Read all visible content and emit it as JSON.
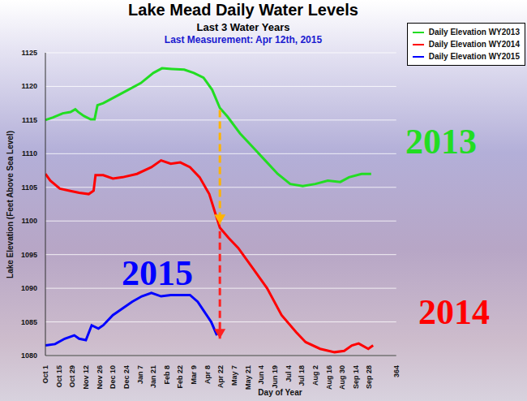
{
  "chart_data": {
    "type": "line",
    "title": "Lake Mead Daily Water Levels",
    "subtitle": "Last 3 Water Years",
    "note": "Last Measurement: Apr 12th, 2015",
    "x_label": "Day of Year",
    "y_label": "Lake Elevation (Feet Above Sea Level)",
    "xlim": [
      0,
      364
    ],
    "xticks": [
      {
        "value": 0,
        "label": "Oct 1"
      },
      {
        "value": 14,
        "label": "Oct 15"
      },
      {
        "value": 28,
        "label": "Oct 29"
      },
      {
        "value": 42,
        "label": "Nov 12"
      },
      {
        "value": 56,
        "label": "Nov 26"
      },
      {
        "value": 70,
        "label": "Dec 10"
      },
      {
        "value": 84,
        "label": "Dec 24"
      },
      {
        "value": 98,
        "label": "Jan 7"
      },
      {
        "value": 112,
        "label": "Jan 21"
      },
      {
        "value": 126,
        "label": "Feb 8"
      },
      {
        "value": 140,
        "label": "Feb 22"
      },
      {
        "value": 154,
        "label": "Mar 9"
      },
      {
        "value": 168,
        "label": "Apr 8"
      },
      {
        "value": 182,
        "label": "Apr 22"
      },
      {
        "value": 196,
        "label": "May 7"
      },
      {
        "value": 210,
        "label": "May 21"
      },
      {
        "value": 224,
        "label": "Jun 4"
      },
      {
        "value": 238,
        "label": "Jun 19"
      },
      {
        "value": 252,
        "label": "Jul 4"
      },
      {
        "value": 266,
        "label": "Jul 18"
      },
      {
        "value": 280,
        "label": "Aug 2"
      },
      {
        "value": 294,
        "label": "Aug 16"
      },
      {
        "value": 308,
        "label": "Aug 30"
      },
      {
        "value": 322,
        "label": "Sep 14"
      },
      {
        "value": 336,
        "label": "Sep 28"
      },
      364
    ],
    "ylim": [
      1080,
      1125
    ],
    "yticks": [
      1080,
      1085,
      1090,
      1095,
      1100,
      1105,
      1110,
      1115,
      1120,
      1125
    ],
    "grid": true,
    "legend": "upper right",
    "series": [
      {
        "name": "Daily Elevation WY2013",
        "color": "#22dd22",
        "x": [
          0,
          8,
          18,
          26,
          31,
          34,
          40,
          47,
          51,
          54,
          60,
          73,
          86,
          99,
          112,
          121,
          131,
          144,
          154,
          164,
          173,
          181,
          189,
          202,
          215,
          228,
          241,
          254,
          267,
          280,
          293,
          306,
          315,
          328,
          338
        ],
        "values": [
          1115,
          1115.4,
          1116,
          1116.2,
          1116.6,
          1116.2,
          1115.6,
          1115.1,
          1115.1,
          1117.2,
          1117.5,
          1118.5,
          1119.5,
          1120.5,
          1122,
          1122.7,
          1122.6,
          1122.5,
          1122,
          1121.3,
          1119.5,
          1116.8,
          1115.5,
          1113,
          1111,
          1109,
          1107,
          1105.5,
          1105.2,
          1105.5,
          1106,
          1105.8,
          1106.5,
          1107,
          1107
        ]
      },
      {
        "name": "Daily Elevation WY2014",
        "color": "#ff0000",
        "x": [
          0,
          5,
          15,
          25,
          35,
          45,
          50,
          52,
          60,
          70,
          80,
          95,
          110,
          120,
          130,
          140,
          150,
          160,
          170,
          181,
          190,
          200,
          215,
          230,
          245,
          260,
          270,
          285,
          300,
          310,
          318,
          325,
          335,
          340
        ],
        "values": [
          1107,
          1106,
          1104.8,
          1104.5,
          1104.2,
          1104,
          1104.5,
          1106.8,
          1106.8,
          1106.3,
          1106.5,
          1107,
          1108,
          1109,
          1108.5,
          1108.7,
          1108,
          1106.5,
          1104,
          1099,
          1097.5,
          1096,
          1093,
          1090,
          1086,
          1083.5,
          1082,
          1081,
          1080.5,
          1080.7,
          1081.5,
          1081.8,
          1081,
          1081.5
        ]
      },
      {
        "name": "Daily Elevation WY2015",
        "color": "#0000ff",
        "x": [
          0,
          10,
          20,
          30,
          35,
          42,
          48,
          55,
          60,
          70,
          80,
          90,
          100,
          110,
          120,
          130,
          140,
          150,
          158,
          165,
          172,
          178
        ],
        "values": [
          1081.5,
          1081.7,
          1082.5,
          1083,
          1082.5,
          1082.3,
          1084.5,
          1084,
          1084.5,
          1086,
          1087,
          1088,
          1088.8,
          1089.3,
          1088.8,
          1089,
          1089,
          1089,
          1088,
          1086.5,
          1085,
          1083
        ]
      }
    ],
    "annotations": [
      {
        "text": "2013",
        "color": "#22dd22"
      },
      {
        "text": "2014",
        "color": "#ff0000"
      },
      {
        "text": "2015",
        "color": "#0000ff"
      }
    ],
    "arrows": [
      {
        "x": 181,
        "y_from": 1116.5,
        "y_to": 1099.5,
        "color": "#ffb400"
      },
      {
        "x": 181,
        "y_from": 1098.5,
        "y_to": 1082.5,
        "color": "#ff2020"
      }
    ]
  }
}
